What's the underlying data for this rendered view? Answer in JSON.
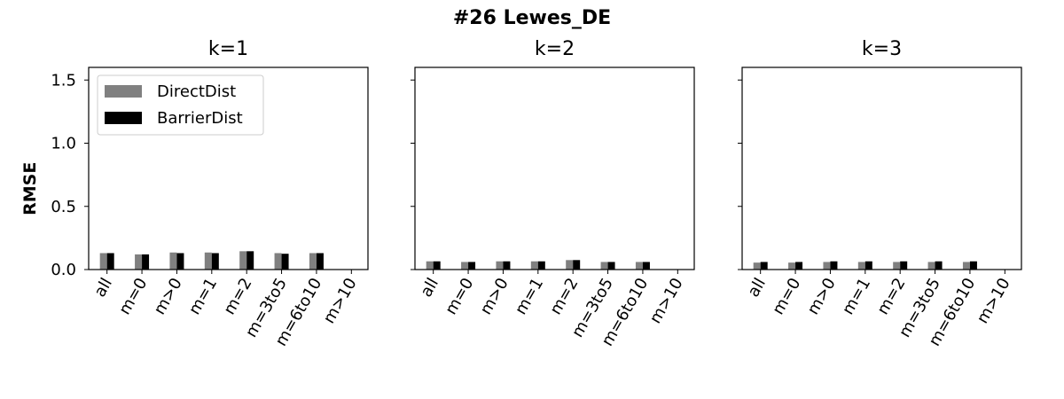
{
  "figure": {
    "suptitle": "#26 Lewes_DE"
  },
  "colors": {
    "DirectDist": "#808080",
    "BarrierDist": "#000000"
  },
  "chart_data": [
    {
      "type": "bar",
      "title": "k=1",
      "ylabel": "RMSE",
      "ylim": [
        0,
        1.6
      ],
      "yticks": [
        "0.0",
        "0.5",
        "1.0",
        "1.5"
      ],
      "categories": [
        "all",
        "m=0",
        "m>0",
        "m=1",
        "m=2",
        "m=3to5",
        "m=6to10",
        "m>10"
      ],
      "legend": {
        "placement": "upper-left",
        "entries": [
          "DirectDist",
          "BarrierDist"
        ]
      },
      "series": [
        {
          "name": "DirectDist",
          "values": [
            0.13,
            0.12,
            0.135,
            0.135,
            0.145,
            0.13,
            0.13,
            null
          ]
        },
        {
          "name": "BarrierDist",
          "values": [
            0.13,
            0.12,
            0.13,
            0.13,
            0.145,
            0.125,
            0.13,
            null
          ]
        }
      ]
    },
    {
      "type": "bar",
      "title": "k=2",
      "ylabel": "",
      "ylim": [
        0,
        1.6
      ],
      "categories": [
        "all",
        "m=0",
        "m>0",
        "m=1",
        "m=2",
        "m=3to5",
        "m=6to10",
        "m>10"
      ],
      "series": [
        {
          "name": "DirectDist",
          "values": [
            0.065,
            0.06,
            0.065,
            0.065,
            0.075,
            0.06,
            0.06,
            null
          ]
        },
        {
          "name": "BarrierDist",
          "values": [
            0.065,
            0.06,
            0.065,
            0.065,
            0.075,
            0.06,
            0.06,
            null
          ]
        }
      ]
    },
    {
      "type": "bar",
      "title": "k=3",
      "ylabel": "",
      "ylim": [
        0,
        1.6
      ],
      "categories": [
        "all",
        "m=0",
        "m>0",
        "m=1",
        "m=2",
        "m=3to5",
        "m=6to10",
        "m>10"
      ],
      "series": [
        {
          "name": "DirectDist",
          "values": [
            0.055,
            0.055,
            0.06,
            0.06,
            0.06,
            0.06,
            0.06,
            null
          ]
        },
        {
          "name": "BarrierDist",
          "values": [
            0.06,
            0.06,
            0.065,
            0.065,
            0.065,
            0.065,
            0.065,
            null
          ]
        }
      ]
    }
  ]
}
